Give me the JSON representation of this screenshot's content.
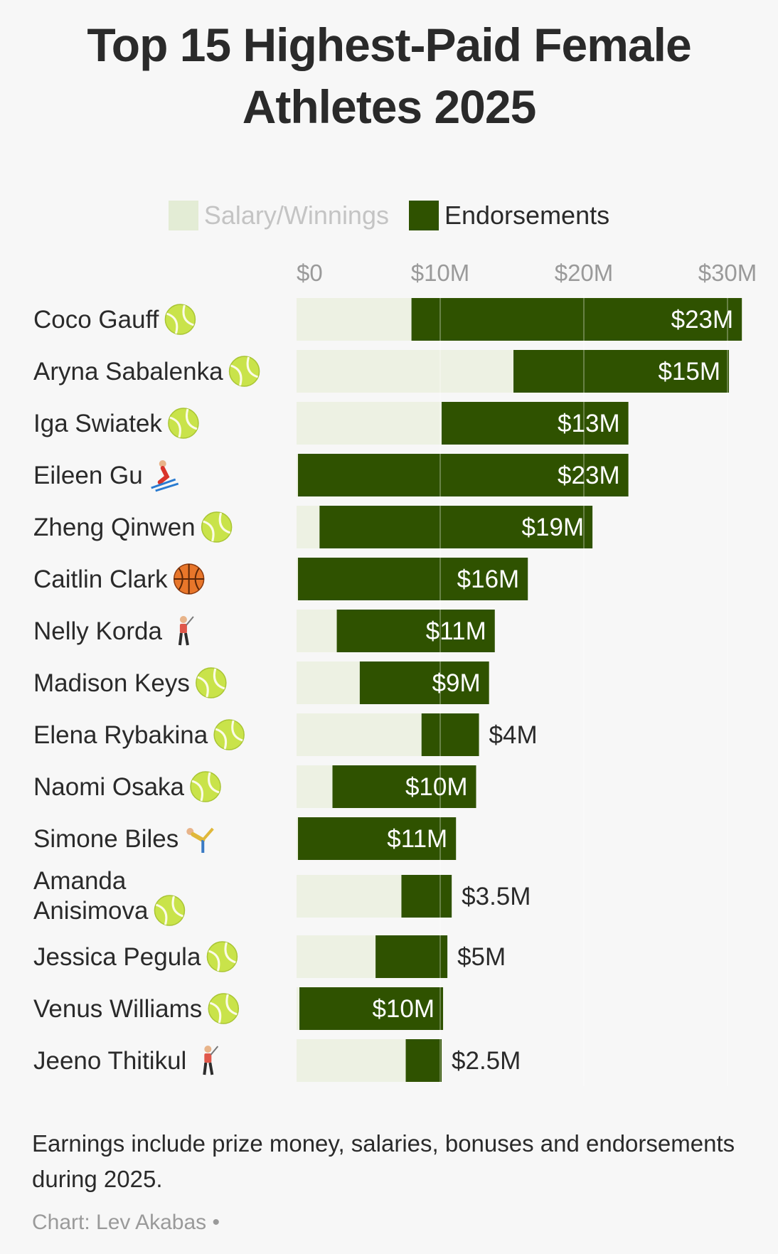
{
  "chart_data": {
    "type": "bar",
    "stacked": true,
    "orientation": "horizontal",
    "title_lines": [
      "Top 15 Highest-Paid Female",
      "Athletes 2025"
    ],
    "legend": {
      "placement": "top-center",
      "entries": [
        {
          "name": "Salary/Winnings",
          "color": "#e3ecd5"
        },
        {
          "name": "Endorsements",
          "color": "#2f5200"
        }
      ]
    },
    "x_ticks": [
      {
        "value": 0,
        "label": "$0"
      },
      {
        "value": 10,
        "label": "$10M"
      },
      {
        "value": 20,
        "label": "$20M"
      },
      {
        "value": 30,
        "label": "$30M"
      }
    ],
    "xlim": [
      0,
      31.5
    ],
    "unit": "$M",
    "categories": [
      {
        "name": "Coco Gauff",
        "icon": "tennis-ball-icon"
      },
      {
        "name": "Aryna Sabalenka",
        "icon": "tennis-ball-icon"
      },
      {
        "name": "Iga Swiatek",
        "icon": "tennis-ball-icon"
      },
      {
        "name": "Eileen Gu",
        "icon": "skier-icon"
      },
      {
        "name": "Zheng Qinwen",
        "icon": "tennis-ball-icon"
      },
      {
        "name": "Caitlin Clark",
        "icon": "basketball-icon"
      },
      {
        "name": "Nelly Korda",
        "icon": "golfer-icon"
      },
      {
        "name": "Madison Keys",
        "icon": "tennis-ball-icon"
      },
      {
        "name": "Elena Rybakina",
        "icon": "tennis-ball-icon"
      },
      {
        "name": "Naomi Osaka",
        "icon": "tennis-ball-icon"
      },
      {
        "name": "Simone Biles",
        "icon": "gymnast-icon"
      },
      {
        "name": "Amanda Anisimova",
        "icon": "tennis-ball-icon"
      },
      {
        "name": "Jessica Pegula",
        "icon": "tennis-ball-icon"
      },
      {
        "name": "Venus Williams",
        "icon": "tennis-ball-icon"
      },
      {
        "name": "Jeeno Thitikul",
        "icon": "golfer-icon"
      }
    ],
    "series": [
      {
        "name": "Salary/Winnings",
        "values": [
          8.0,
          15.1,
          10.1,
          0.1,
          1.6,
          0.1,
          2.8,
          4.4,
          8.7,
          2.5,
          0.1,
          7.3,
          5.5,
          0.2,
          7.6
        ]
      },
      {
        "name": "Endorsements",
        "values": [
          23,
          15,
          13,
          23,
          19,
          16,
          11,
          9,
          4,
          10,
          11,
          3.5,
          5,
          10,
          2.5
        ]
      }
    ],
    "endorsement_labels": [
      "$23M",
      "$15M",
      "$13M",
      "$23M",
      "$19M",
      "$16M",
      "$11M",
      "$9M",
      "$4M",
      "$10M",
      "$11M",
      "$3.5M",
      "$5M",
      "$10M",
      "$2.5M"
    ],
    "colors": {
      "salary": "#e3ecd5",
      "salary_light": "#edf1e3",
      "endorsement": "#2f5200",
      "grid": "#ffffff",
      "axis_text": "#9a9a9a"
    }
  },
  "footnote": "Earnings include prize money, salaries, bonuses and endorsements during 2025.",
  "credit": "Chart: Lev Akabas •"
}
